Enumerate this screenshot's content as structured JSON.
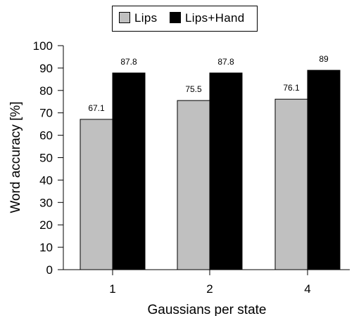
{
  "chart_data": {
    "type": "bar",
    "categories": [
      "1",
      "2",
      "4"
    ],
    "series": [
      {
        "name": "Lips",
        "values": [
          67.1,
          75.5,
          76.1
        ],
        "color": "#c0c0c0"
      },
      {
        "name": "Lips+Hand",
        "values": [
          87.8,
          87.8,
          89
        ],
        "color": "#000000"
      }
    ],
    "value_labels": [
      [
        "67.1",
        "75.5",
        "76.1"
      ],
      [
        "87.8",
        "87.8",
        "89"
      ]
    ],
    "xlabel": "Gaussians per state",
    "ylabel": "Word accuracy [%]",
    "ylim": [
      0,
      100
    ],
    "yticks": [
      "0",
      "10",
      "20",
      "30",
      "40",
      "50",
      "60",
      "70",
      "80",
      "90",
      "100"
    ],
    "legend_position": "top-center",
    "grid": false
  }
}
